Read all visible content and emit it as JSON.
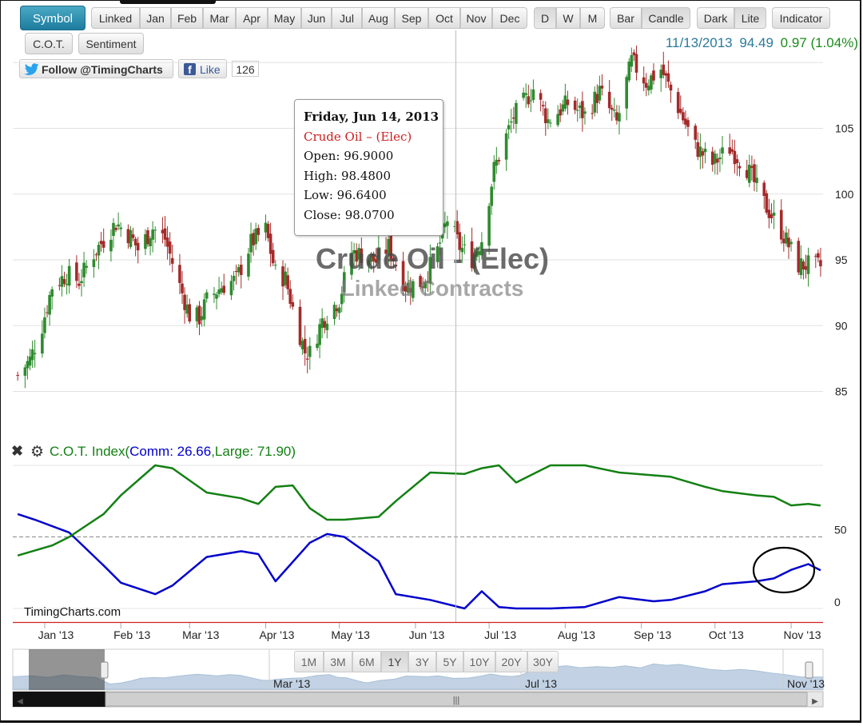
{
  "toolbar": {
    "symbol_label": "Symbol",
    "months": [
      "Linked",
      "Jan",
      "Feb",
      "Mar",
      "Apr",
      "May",
      "Jun",
      "Jul",
      "Aug",
      "Sep",
      "Oct",
      "Nov",
      "Dec"
    ],
    "periods": [
      "D",
      "W",
      "M"
    ],
    "styles": [
      "Bar",
      "Candle"
    ],
    "themes": [
      "Dark",
      "Lite"
    ],
    "indicator_label": "Indicator",
    "cot_label": "C.O.T.",
    "sentiment_label": "Sentiment"
  },
  "social": {
    "twitter_label": "Follow @TimingCharts",
    "like_label": "Like",
    "like_count": "126"
  },
  "quote": {
    "date": "11/13/2013",
    "price": "94.49",
    "change": "0.97 (1.04%)"
  },
  "colors": {
    "up": "#2e8b2e",
    "down": "#a52a2a",
    "commercial": "#0000cc",
    "large": "#138013",
    "quote_date": "#2a7a9a",
    "quote_change": "#1a8a1a"
  },
  "tooltip": {
    "date": "Friday, Jun 14, 2013",
    "name": "Crude Oil – (Elec)",
    "open": "Open: 96.9000",
    "high": "High: 98.4800",
    "low": "Low: 96.6400",
    "close": "Close: 98.0700"
  },
  "watermark": {
    "line1": "Crude Oil - (Elec)",
    "line2": "Linked Contracts"
  },
  "indicator": {
    "prefix": "C.O.T. Index(",
    "comm": "Comm: 26.66",
    "sep": ",",
    "large": "Large: 71.90",
    "suffix": ")"
  },
  "brand": "TimingCharts.com",
  "range_buttons": [
    "1M",
    "3M",
    "6M",
    "1Y",
    "3Y",
    "5Y",
    "10Y",
    "20Y",
    "30Y"
  ],
  "chart_data": [
    {
      "type": "candlestick",
      "title": "Crude Oil - (Elec)",
      "subtitle": "Linked Contracts",
      "y_ticks": [
        85,
        90,
        95,
        100,
        105
      ],
      "ylim": [
        84,
        111.5
      ],
      "x_ticks": [
        "Jan '13",
        "Feb '13",
        "Mar '13",
        "Apr '13",
        "May '13",
        "Jun '13",
        "Jul '13",
        "Aug '13",
        "Sep '13",
        "Oct '13",
        "Nov '13"
      ],
      "close_profile": [
        [
          "2012-12-21",
          86.2
        ],
        [
          "2012-12-26",
          87.4
        ],
        [
          "2012-12-31",
          90.0
        ],
        [
          "2013-01-04",
          93.0
        ],
        [
          "2013-01-10",
          93.9
        ],
        [
          "2013-01-15",
          93.4
        ],
        [
          "2013-01-21",
          95.5
        ],
        [
          "2013-01-30",
          97.8
        ],
        [
          "2013-02-05",
          96.8
        ],
        [
          "2013-02-08",
          95.8
        ],
        [
          "2013-02-14",
          97.4
        ],
        [
          "2013-02-19",
          96.6
        ],
        [
          "2013-02-25",
          93.0
        ],
        [
          "2013-03-01",
          90.8
        ],
        [
          "2013-03-05",
          90.6
        ],
        [
          "2013-03-08",
          91.9
        ],
        [
          "2013-03-14",
          93.0
        ],
        [
          "2013-03-20",
          93.5
        ],
        [
          "2013-03-26",
          96.3
        ],
        [
          "2013-04-01",
          97.3
        ],
        [
          "2013-04-05",
          94.0
        ],
        [
          "2013-04-09",
          93.6
        ],
        [
          "2013-04-12",
          91.3
        ],
        [
          "2013-04-17",
          88.0
        ],
        [
          "2013-04-19",
          87.9
        ],
        [
          "2013-04-24",
          90.4
        ],
        [
          "2013-05-01",
          92.0
        ],
        [
          "2013-05-06",
          95.6
        ],
        [
          "2013-05-10",
          95.4
        ],
        [
          "2013-05-16",
          94.9
        ],
        [
          "2013-05-21",
          96.0
        ],
        [
          "2013-05-28",
          93.0
        ],
        [
          "2013-06-04",
          93.3
        ],
        [
          "2013-06-10",
          95.7
        ],
        [
          "2013-06-14",
          98.1
        ],
        [
          "2013-06-19",
          96.0
        ],
        [
          "2013-06-24",
          95.1
        ],
        [
          "2013-06-28",
          96.6
        ],
        [
          "2013-07-03",
          101.9
        ],
        [
          "2013-07-11",
          105.9
        ],
        [
          "2013-07-19",
          108.0
        ],
        [
          "2013-07-25",
          105.6
        ],
        [
          "2013-08-02",
          106.9
        ],
        [
          "2013-08-09",
          106.0
        ],
        [
          "2013-08-15",
          107.8
        ],
        [
          "2013-08-22",
          105.4
        ],
        [
          "2013-08-28",
          110.1
        ],
        [
          "2013-09-03",
          108.5
        ],
        [
          "2013-09-09",
          109.5
        ],
        [
          "2013-09-16",
          106.6
        ],
        [
          "2013-09-23",
          103.6
        ],
        [
          "2013-09-30",
          102.3
        ],
        [
          "2013-10-07",
          103.5
        ],
        [
          "2013-10-14",
          102.0
        ],
        [
          "2013-10-21",
          99.3
        ],
        [
          "2013-10-28",
          97.2
        ],
        [
          "2013-11-04",
          94.6
        ],
        [
          "2013-11-08",
          94.6
        ],
        [
          "2013-11-13",
          94.49
        ]
      ]
    },
    {
      "type": "line",
      "title": "C.O.T. Index",
      "y_ticks": [
        0,
        50
      ],
      "ylim": [
        -5,
        100
      ],
      "reference_line": 50,
      "series": [
        {
          "name": "Comm",
          "last": 26.66,
          "values": [
            [
              "2012-12-21",
              66
            ],
            [
              "2012-12-28",
              62
            ],
            [
              "2013-01-11",
              53
            ],
            [
              "2013-01-25",
              30
            ],
            [
              "2013-02-01",
              18
            ],
            [
              "2013-02-15",
              10
            ],
            [
              "2013-02-22",
              16
            ],
            [
              "2013-03-08",
              36
            ],
            [
              "2013-03-22",
              40
            ],
            [
              "2013-03-29",
              38
            ],
            [
              "2013-04-05",
              19
            ],
            [
              "2013-04-19",
              46
            ],
            [
              "2013-04-26",
              52
            ],
            [
              "2013-05-03",
              50
            ],
            [
              "2013-05-17",
              33
            ],
            [
              "2013-05-24",
              10
            ],
            [
              "2013-06-07",
              6
            ],
            [
              "2013-06-21",
              0
            ],
            [
              "2013-06-28",
              12
            ],
            [
              "2013-07-05",
              1
            ],
            [
              "2013-07-12",
              0
            ],
            [
              "2013-07-26",
              0
            ],
            [
              "2013-08-09",
              1
            ],
            [
              "2013-08-23",
              8
            ],
            [
              "2013-09-06",
              5
            ],
            [
              "2013-09-13",
              6
            ],
            [
              "2013-09-27",
              12
            ],
            [
              "2013-10-04",
              17
            ],
            [
              "2013-10-18",
              19
            ],
            [
              "2013-10-25",
              21
            ],
            [
              "2013-11-01",
              27
            ],
            [
              "2013-11-08",
              31
            ],
            [
              "2013-11-13",
              26.66
            ]
          ]
        },
        {
          "name": "Large",
          "last": 71.9,
          "values": [
            [
              "2012-12-21",
              37
            ],
            [
              "2013-01-04",
              44
            ],
            [
              "2013-01-11",
              50
            ],
            [
              "2013-01-25",
              66
            ],
            [
              "2013-02-01",
              79
            ],
            [
              "2013-02-15",
              100
            ],
            [
              "2013-02-22",
              98
            ],
            [
              "2013-03-08",
              81
            ],
            [
              "2013-03-22",
              77
            ],
            [
              "2013-03-29",
              73
            ],
            [
              "2013-04-05",
              85
            ],
            [
              "2013-04-12",
              86
            ],
            [
              "2013-04-19",
              70
            ],
            [
              "2013-04-26",
              62
            ],
            [
              "2013-05-03",
              62
            ],
            [
              "2013-05-17",
              64
            ],
            [
              "2013-05-24",
              75
            ],
            [
              "2013-06-07",
              95
            ],
            [
              "2013-06-21",
              94
            ],
            [
              "2013-06-28",
              98
            ],
            [
              "2013-07-05",
              100
            ],
            [
              "2013-07-12",
              88
            ],
            [
              "2013-07-26",
              100
            ],
            [
              "2013-08-09",
              100
            ],
            [
              "2013-08-23",
              95
            ],
            [
              "2013-09-06",
              93
            ],
            [
              "2013-09-13",
              92
            ],
            [
              "2013-09-27",
              85
            ],
            [
              "2013-10-04",
              82
            ],
            [
              "2013-10-18",
              79
            ],
            [
              "2013-10-25",
              78
            ],
            [
              "2013-11-01",
              72
            ],
            [
              "2013-11-08",
              73
            ],
            [
              "2013-11-13",
              71.9
            ]
          ]
        }
      ]
    }
  ],
  "navigator": {
    "labels": [
      "Mar '13",
      "Jul '13",
      "Nov '13"
    ]
  }
}
